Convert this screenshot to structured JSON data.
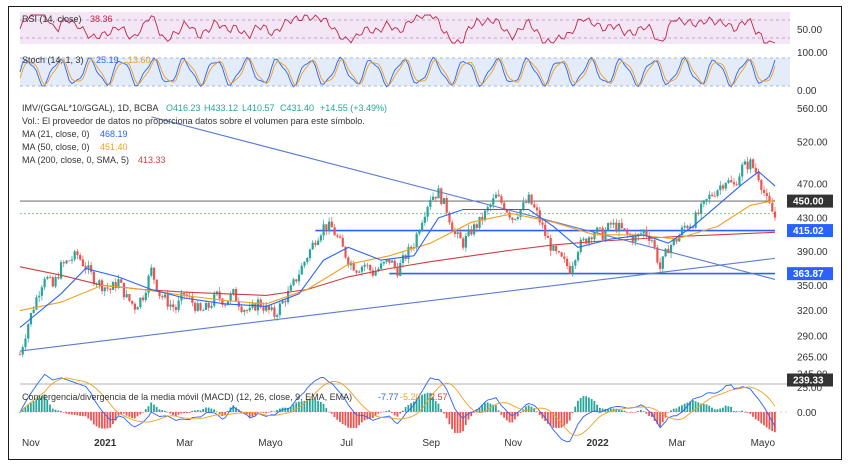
{
  "chart_data": {
    "type": "candlestick",
    "header": {
      "symbol_line": "IMV/(GGAL*10/GGAL), 1D, BCBA",
      "ohlc": {
        "open": "O416.23",
        "high": "H433.12",
        "low": "L410.57",
        "close": "C431.40",
        "change": "+14.55 (+3.49%)"
      },
      "volume_note": "Vol.: El proveedor de datos no proporciona datos sobre el volumen para este símbolo."
    },
    "moving_averages": [
      {
        "label": "MA (21, close, 0)",
        "value": "468.19",
        "color": "#2962ff"
      },
      {
        "label": "MA (50, close, 0)",
        "value": "451.40",
        "color": "#f0a020"
      },
      {
        "label": "MA (200, close, 0, SMA, 5)",
        "value": "413.33",
        "color": "#d04040"
      }
    ],
    "rsi": {
      "label": "RSI (14, close)",
      "value": "38.36",
      "ticks": [
        "50.00"
      ],
      "color": "#c0284a"
    },
    "stoch": {
      "label": "Stoch (14, 1, 3)",
      "k": "25.19",
      "d": "13.60",
      "ticks": [
        "100.00",
        "0.00"
      ]
    },
    "macd": {
      "label": "Convergencia/divergencia de la media móvil (MACD) (12, 26, close, 9, EMA, EMA)",
      "v1": "-7.77",
      "v2": "-5.20",
      "v3": "2.57",
      "ticks": [
        "25.00",
        "0.00"
      ]
    },
    "price_axis": {
      "ticks": [
        560,
        520,
        470,
        430,
        390,
        350,
        320,
        290,
        265,
        245
      ],
      "tick_labels": [
        "560.00",
        "520.00",
        "470.00",
        "430.00",
        "390.00",
        "350.00",
        "320.00",
        "290.00",
        "265.00",
        "245.00"
      ],
      "ylim": [
        240,
        570
      ]
    },
    "price_tags": [
      {
        "value": 450.0,
        "label": "450.00",
        "color": "#333333"
      },
      {
        "value": 415.02,
        "label": "415.02",
        "color": "#2962ff"
      },
      {
        "value": 363.87,
        "label": "363.87",
        "color": "#2962ff"
      },
      {
        "value": 239.33,
        "label": "239.33",
        "color": "#333333"
      }
    ],
    "x_axis": {
      "labels": [
        "Nov",
        "2021",
        "Mar",
        "Mayo",
        "Jul",
        "Sep",
        "Nov",
        "2022",
        "Mar",
        "Mayo"
      ],
      "positions": [
        0,
        2,
        4,
        6,
        8,
        10,
        12,
        14,
        16,
        18
      ],
      "range": [
        0,
        18.4
      ]
    },
    "series_close": [
      [
        0.0,
        268
      ],
      [
        0.2,
        305
      ],
      [
        0.4,
        335
      ],
      [
        0.6,
        362
      ],
      [
        0.8,
        348
      ],
      [
        1.0,
        372
      ],
      [
        1.2,
        380
      ],
      [
        1.4,
        386
      ],
      [
        1.6,
        372
      ],
      [
        1.8,
        358
      ],
      [
        2.0,
        350
      ],
      [
        2.2,
        345
      ],
      [
        2.4,
        355
      ],
      [
        2.6,
        335
      ],
      [
        2.8,
        325
      ],
      [
        3.0,
        338
      ],
      [
        3.2,
        368
      ],
      [
        3.4,
        340
      ],
      [
        3.6,
        330
      ],
      [
        3.8,
        322
      ],
      [
        4.0,
        340
      ],
      [
        4.2,
        330
      ],
      [
        4.4,
        318
      ],
      [
        4.6,
        325
      ],
      [
        4.8,
        338
      ],
      [
        5.0,
        330
      ],
      [
        5.2,
        340
      ],
      [
        5.4,
        325
      ],
      [
        5.6,
        318
      ],
      [
        5.8,
        330
      ],
      [
        6.0,
        322
      ],
      [
        6.2,
        315
      ],
      [
        6.4,
        330
      ],
      [
        6.6,
        345
      ],
      [
        6.8,
        365
      ],
      [
        7.0,
        385
      ],
      [
        7.2,
        405
      ],
      [
        7.4,
        420
      ],
      [
        7.6,
        418
      ],
      [
        7.8,
        400
      ],
      [
        8.0,
        380
      ],
      [
        8.2,
        370
      ],
      [
        8.4,
        375
      ],
      [
        8.6,
        365
      ],
      [
        8.8,
        372
      ],
      [
        9.0,
        380
      ],
      [
        9.2,
        368
      ],
      [
        9.4,
        385
      ],
      [
        9.6,
        400
      ],
      [
        9.8,
        430
      ],
      [
        10.0,
        455
      ],
      [
        10.2,
        460
      ],
      [
        10.4,
        440
      ],
      [
        10.6,
        410
      ],
      [
        10.8,
        400
      ],
      [
        11.0,
        415
      ],
      [
        11.2,
        425
      ],
      [
        11.4,
        440
      ],
      [
        11.6,
        455
      ],
      [
        11.8,
        445
      ],
      [
        12.0,
        430
      ],
      [
        12.2,
        440
      ],
      [
        12.4,
        452
      ],
      [
        12.6,
        435
      ],
      [
        12.8,
        410
      ],
      [
        13.0,
        390
      ],
      [
        13.2,
        380
      ],
      [
        13.4,
        370
      ],
      [
        13.6,
        395
      ],
      [
        13.8,
        405
      ],
      [
        14.0,
        415
      ],
      [
        14.2,
        410
      ],
      [
        14.4,
        422
      ],
      [
        14.6,
        418
      ],
      [
        14.8,
        410
      ],
      [
        15.0,
        405
      ],
      [
        15.2,
        415
      ],
      [
        15.4,
        405
      ],
      [
        15.6,
        370
      ],
      [
        15.8,
        395
      ],
      [
        16.0,
        405
      ],
      [
        16.2,
        420
      ],
      [
        16.4,
        425
      ],
      [
        16.6,
        440
      ],
      [
        16.8,
        455
      ],
      [
        17.0,
        465
      ],
      [
        17.2,
        475
      ],
      [
        17.4,
        468
      ],
      [
        17.6,
        490
      ],
      [
        17.8,
        495
      ],
      [
        18.0,
        480
      ],
      [
        18.2,
        450
      ],
      [
        18.4,
        431
      ]
    ],
    "ma21": [
      [
        0.0,
        300
      ],
      [
        1.0,
        340
      ],
      [
        1.6,
        370
      ],
      [
        2.4,
        360
      ],
      [
        3.2,
        345
      ],
      [
        4.0,
        335
      ],
      [
        5.0,
        328
      ],
      [
        6.0,
        325
      ],
      [
        6.8,
        340
      ],
      [
        7.4,
        380
      ],
      [
        8.0,
        395
      ],
      [
        8.8,
        380
      ],
      [
        9.6,
        385
      ],
      [
        10.2,
        430
      ],
      [
        10.8,
        440
      ],
      [
        11.6,
        440
      ],
      [
        12.4,
        440
      ],
      [
        13.0,
        420
      ],
      [
        13.6,
        395
      ],
      [
        14.4,
        405
      ],
      [
        15.2,
        410
      ],
      [
        15.8,
        400
      ],
      [
        16.4,
        420
      ],
      [
        17.0,
        445
      ],
      [
        17.6,
        470
      ],
      [
        18.0,
        485
      ],
      [
        18.4,
        468
      ]
    ],
    "ma50": [
      [
        0.0,
        320
      ],
      [
        1.0,
        330
      ],
      [
        2.0,
        350
      ],
      [
        3.0,
        345
      ],
      [
        4.0,
        338
      ],
      [
        5.0,
        332
      ],
      [
        6.0,
        328
      ],
      [
        7.0,
        345
      ],
      [
        8.0,
        375
      ],
      [
        9.0,
        385
      ],
      [
        10.0,
        400
      ],
      [
        11.0,
        425
      ],
      [
        12.0,
        435
      ],
      [
        13.0,
        425
      ],
      [
        14.0,
        410
      ],
      [
        15.0,
        410
      ],
      [
        16.0,
        405
      ],
      [
        17.0,
        420
      ],
      [
        17.8,
        445
      ],
      [
        18.4,
        451
      ]
    ],
    "ma200": [
      [
        0.0,
        372
      ],
      [
        1.0,
        362
      ],
      [
        2.0,
        350
      ],
      [
        3.0,
        345
      ],
      [
        4.0,
        342
      ],
      [
        5.0,
        340
      ],
      [
        6.0,
        338
      ],
      [
        7.0,
        345
      ],
      [
        8.0,
        360
      ],
      [
        9.0,
        370
      ],
      [
        10.0,
        378
      ],
      [
        11.0,
        385
      ],
      [
        12.0,
        392
      ],
      [
        13.0,
        398
      ],
      [
        14.0,
        402
      ],
      [
        15.0,
        405
      ],
      [
        16.0,
        408
      ],
      [
        17.0,
        410
      ],
      [
        18.4,
        413
      ]
    ],
    "trendlines": [
      {
        "from": [
          0.0,
          272
        ],
        "to": [
          18.4,
          382
        ],
        "color": "#5b7bd5"
      },
      {
        "from": [
          3.2,
          550
        ],
        "to": [
          18.4,
          357
        ],
        "color": "#5b7bd5"
      }
    ],
    "hlines": [
      {
        "y": 450,
        "x0": 0.0,
        "x1": 18.4,
        "color": "#555555"
      },
      {
        "y": 435,
        "x0": 0.0,
        "x1": 18.4,
        "color": "#6bbf6b",
        "dashed": true
      },
      {
        "y": 415,
        "x0": 7.2,
        "x1": 18.4,
        "color": "#2962ff"
      },
      {
        "y": 364,
        "x0": 9.0,
        "x1": 18.4,
        "color": "#2962ff"
      }
    ]
  }
}
